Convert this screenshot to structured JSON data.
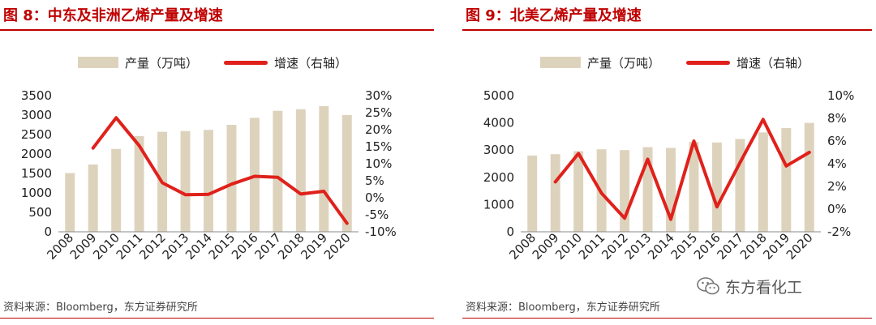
{
  "chart_data": [
    {
      "type": "bar",
      "title": "图 8：中东及非洲乙烯产量及增速",
      "categories": [
        "2008",
        "2009",
        "2010",
        "2011",
        "2012",
        "2013",
        "2014",
        "2015",
        "2016",
        "2017",
        "2018",
        "2019",
        "2020"
      ],
      "series": [
        {
          "name": "产量（万吨）",
          "type": "bar",
          "axis": "left",
          "values": [
            1510,
            1730,
            2130,
            2460,
            2570,
            2590,
            2620,
            2750,
            2930,
            3110,
            3150,
            3230,
            3000
          ]
        },
        {
          "name": "增速（右轴）",
          "type": "line",
          "axis": "right",
          "values": [
            null,
            14.6,
            23.5,
            15.3,
            4.4,
            0.9,
            1.0,
            4.0,
            6.3,
            6.0,
            1.1,
            1.9,
            -7.5
          ]
        }
      ],
      "ylim_left": [
        0,
        3500
      ],
      "yticks_left": [
        "0",
        "500",
        "1000",
        "1500",
        "2000",
        "2500",
        "3000",
        "3500"
      ],
      "ylim_right": [
        -10,
        30
      ],
      "yticks_right": [
        "-10%",
        "-5%",
        "0%",
        "5%",
        "10%",
        "15%",
        "20%",
        "25%",
        "30%"
      ],
      "colors": {
        "bar": "#ddd3bd",
        "line": "#e0211b"
      },
      "legend_position": "top",
      "source": "资料来源：Bloomberg，东方证券研究所"
    },
    {
      "type": "bar",
      "title": "图 9：北美乙烯产量及增速",
      "categories": [
        "2008",
        "2009",
        "2010",
        "2011",
        "2012",
        "2013",
        "2014",
        "2015",
        "2016",
        "2017",
        "2018",
        "2019",
        "2020"
      ],
      "series": [
        {
          "name": "产量（万吨）",
          "type": "bar",
          "axis": "left",
          "values": [
            2800,
            2850,
            2960,
            3030,
            3000,
            3110,
            3080,
            3300,
            3280,
            3410,
            3650,
            3810,
            4000
          ]
        },
        {
          "name": "增速（右轴）",
          "type": "line",
          "axis": "right",
          "values": [
            null,
            2.4,
            4.9,
            1.4,
            -0.8,
            4.4,
            -0.9,
            6.0,
            0.2,
            4.1,
            7.9,
            3.8,
            5.0
          ]
        }
      ],
      "ylim_left": [
        0,
        5000
      ],
      "yticks_left": [
        "0",
        "1000",
        "2000",
        "3000",
        "4000",
        "5000"
      ],
      "ylim_right": [
        -2,
        10
      ],
      "yticks_right": [
        "-2%",
        "0%",
        "2%",
        "4%",
        "6%",
        "8%",
        "10%"
      ],
      "colors": {
        "bar": "#ddd3bd",
        "line": "#e0211b"
      },
      "legend_position": "top",
      "source": "资料来源：Bloomberg，东方证券研究所"
    }
  ],
  "legend": {
    "bar_label": "产量（万吨）",
    "line_label": "增速（右轴）"
  },
  "watermark": {
    "text": "东方看化工",
    "icon": "wechat-icon"
  }
}
